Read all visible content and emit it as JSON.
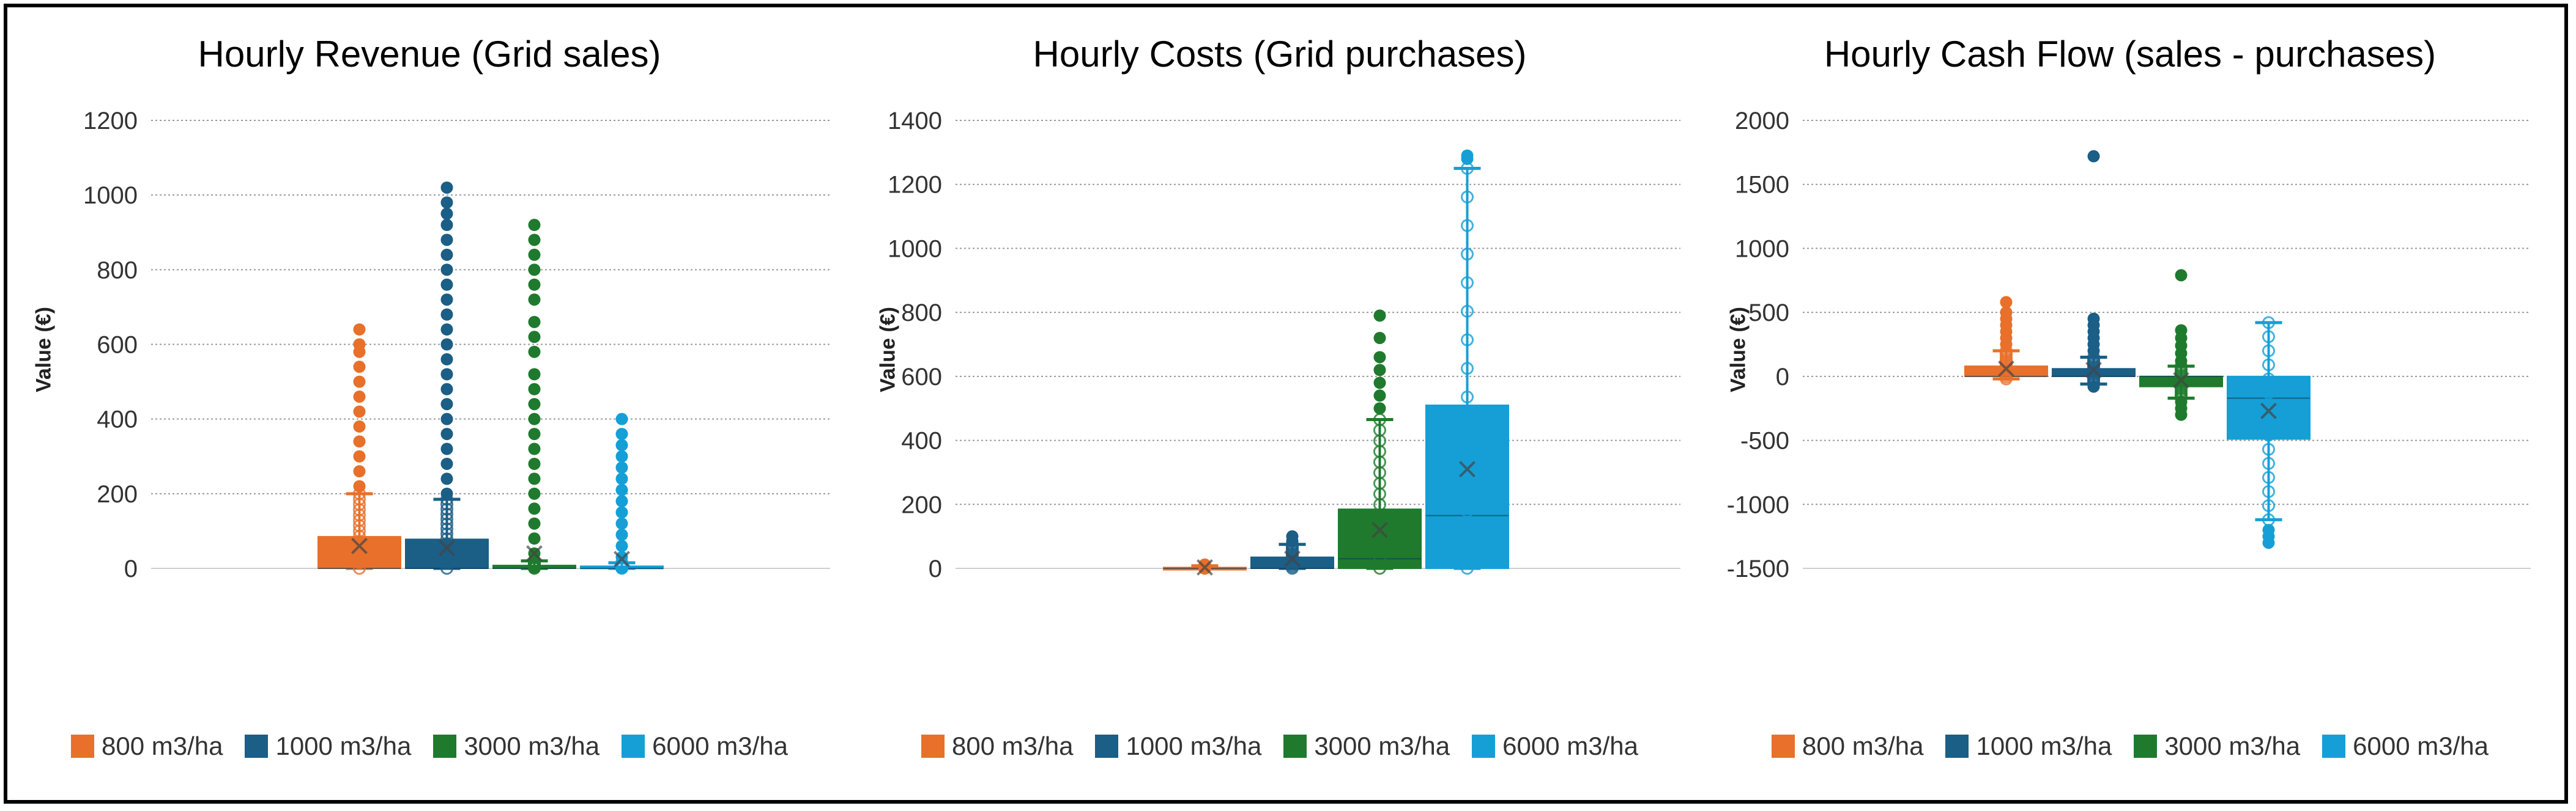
{
  "colors": {
    "s800": "#E8702A",
    "s1000": "#1B5E86",
    "s3000": "#1F7A2E",
    "s6000": "#159FD6"
  },
  "legend": [
    "800 m3/ha",
    "1000 m3/ha",
    "3000 m3/ha",
    "6000 m3/ha"
  ],
  "chart_data": [
    {
      "type": "box",
      "title": "Hourly Revenue (Grid sales)",
      "ylabel": "Value (€)",
      "ylim": [
        0,
        1200
      ],
      "yticks": [
        0,
        200,
        400,
        600,
        800,
        1000,
        1200
      ],
      "grid": true,
      "legend_position": "bottom",
      "series": [
        {
          "name": "800 m3/ha",
          "q1": 0,
          "median": 0,
          "q3": 85,
          "mean": 60,
          "whisker_low": 0,
          "whisker_high": 200,
          "outliers": [
            220,
            260,
            300,
            340,
            380,
            420,
            460,
            500,
            540,
            580,
            600,
            640
          ]
        },
        {
          "name": "1000 m3/ha",
          "q1": 0,
          "median": 0,
          "q3": 78,
          "mean": 55,
          "whisker_low": 0,
          "whisker_high": 185,
          "outliers": [
            200,
            240,
            280,
            320,
            360,
            400,
            440,
            480,
            520,
            560,
            600,
            640,
            680,
            720,
            760,
            800,
            840,
            880,
            920,
            950,
            980,
            1020
          ]
        },
        {
          "name": "3000 m3/ha",
          "q1": 0,
          "median": 0,
          "q3": 8,
          "mean": 40,
          "whisker_low": 0,
          "whisker_high": 20,
          "outliers": [
            40,
            80,
            120,
            160,
            200,
            240,
            280,
            320,
            360,
            400,
            440,
            480,
            520,
            580,
            620,
            660,
            720,
            760,
            800,
            840,
            880,
            920
          ]
        },
        {
          "name": "6000 m3/ha",
          "q1": 0,
          "median": 0,
          "q3": 6,
          "mean": 25,
          "whisker_low": 0,
          "whisker_high": 15,
          "outliers": [
            30,
            60,
            90,
            120,
            150,
            180,
            210,
            240,
            270,
            300,
            330,
            360,
            400
          ]
        }
      ]
    },
    {
      "type": "box",
      "title": "Hourly Costs (Grid purchases)",
      "ylabel": "Value (€)",
      "ylim": [
        0,
        1400
      ],
      "yticks": [
        0,
        200,
        400,
        600,
        800,
        1000,
        1200,
        1400
      ],
      "grid": true,
      "legend_position": "bottom",
      "series": [
        {
          "name": "800 m3/ha",
          "q1": 0,
          "median": 0,
          "q3": 3,
          "mean": 3,
          "whisker_low": 0,
          "whisker_high": 8,
          "outliers": [
            12
          ]
        },
        {
          "name": "1000 m3/ha",
          "q1": 0,
          "median": 0,
          "q3": 35,
          "mean": 30,
          "whisker_low": 0,
          "whisker_high": 75,
          "outliers": [
            85,
            100
          ]
        },
        {
          "name": "3000 m3/ha",
          "q1": 0,
          "median": 30,
          "q3": 185,
          "mean": 120,
          "whisker_low": 0,
          "whisker_high": 465,
          "outliers": [
            500,
            540,
            580,
            620,
            660,
            720,
            790
          ]
        },
        {
          "name": "6000 m3/ha",
          "q1": 0,
          "median": 165,
          "q3": 510,
          "mean": 310,
          "whisker_low": 0,
          "whisker_high": 1250,
          "outliers": [
            1280,
            1290
          ]
        }
      ]
    },
    {
      "type": "box",
      "title": "Hourly Cash Flow (sales - purchases)",
      "ylabel": "Value (€)",
      "ylim": [
        -1500,
        2000
      ],
      "yticks": [
        -1500,
        -1000,
        -500,
        0,
        500,
        1000,
        1500,
        2000
      ],
      "grid": true,
      "legend_position": "bottom",
      "series": [
        {
          "name": "800 m3/ha",
          "q1": 0,
          "median": 0,
          "q3": 80,
          "mean": 60,
          "whisker_low": -20,
          "whisker_high": 200,
          "outliers": [
            250,
            300,
            350,
            400,
            450,
            500,
            580
          ]
        },
        {
          "name": "1000 m3/ha",
          "q1": 0,
          "median": 0,
          "q3": 60,
          "mean": 50,
          "whisker_low": -60,
          "whisker_high": 150,
          "outliers": [
            -80,
            200,
            250,
            300,
            350,
            400,
            450,
            1720
          ]
        },
        {
          "name": "3000 m3/ha",
          "q1": -80,
          "median": 0,
          "q3": 0,
          "mean": -30,
          "whisker_low": -170,
          "whisker_high": 80,
          "outliers": [
            -200,
            -250,
            -300,
            120,
            180,
            240,
            300,
            360,
            790
          ]
        },
        {
          "name": "6000 m3/ha",
          "q1": -490,
          "median": -170,
          "q3": 0,
          "mean": -270,
          "whisker_low": -1120,
          "whisker_high": 420,
          "outliers": [
            -1200,
            -1250,
            -1300
          ]
        }
      ]
    }
  ]
}
